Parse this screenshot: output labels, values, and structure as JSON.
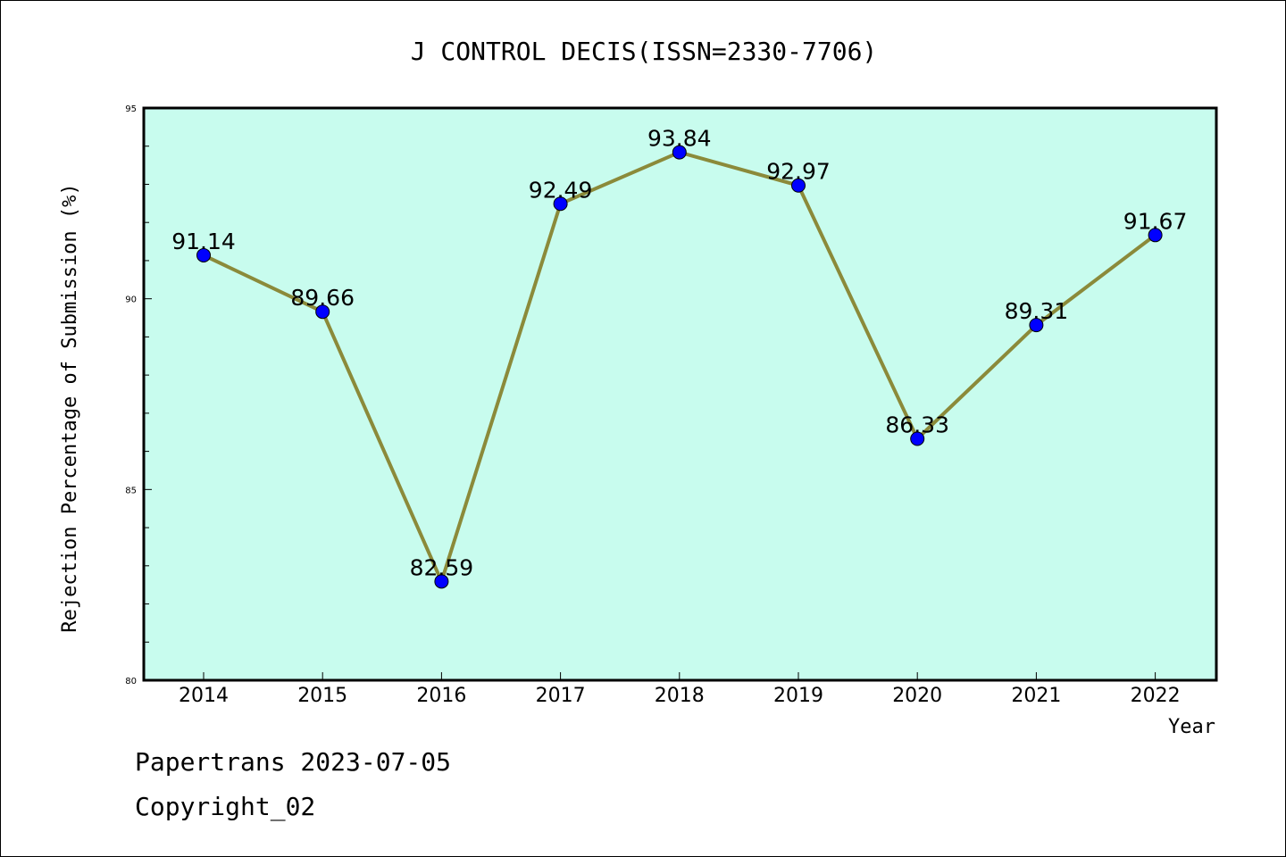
{
  "chart_data": {
    "type": "line",
    "title": "J CONTROL DECIS(ISSN=2330-7706)",
    "xlabel": "Year",
    "ylabel": "Rejection Percentage of Submission (%)",
    "categories": [
      "2014",
      "2015",
      "2016",
      "2017",
      "2018",
      "2019",
      "2020",
      "2021",
      "2022"
    ],
    "series": [
      {
        "values": [
          91.14,
          89.66,
          82.59,
          92.49,
          93.84,
          92.97,
          86.33,
          89.31,
          91.67
        ],
        "labels": [
          "91.14",
          "89.66",
          "82.59",
          "92.49",
          "93.84",
          "92.97",
          "86.33",
          "89.31",
          "91.67"
        ]
      }
    ],
    "ylim": [
      80,
      95
    ],
    "yticks": [
      "80",
      "85",
      "90",
      "95"
    ],
    "grid": false,
    "legend": "none",
    "colors": {
      "plot_background": "#c8fcee",
      "line": "#8b8a3a",
      "marker": "#0000ff"
    }
  },
  "footer": {
    "line1": "Papertrans 2023-07-05",
    "line2": "Copyright_02"
  }
}
